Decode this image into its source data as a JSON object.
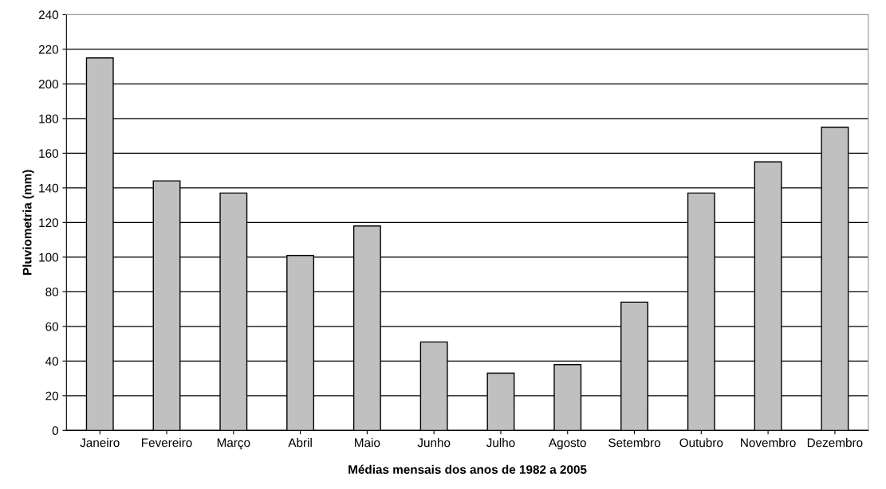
{
  "chart_data": {
    "type": "bar",
    "xlabel": "Médias mensais dos anos de 1982 a 2005",
    "ylabel": "Pluviometria (mm)",
    "categories": [
      "Janeiro",
      "Fevereiro",
      "Março",
      "Abril",
      "Maio",
      "Junho",
      "Julho",
      "Agosto",
      "Setembro",
      "Outubro",
      "Novembro",
      "Dezembro"
    ],
    "values": [
      215,
      144,
      137,
      101,
      118,
      51,
      33,
      38,
      74,
      137,
      155,
      175
    ],
    "color": "#c0c0c0",
    "ylim": [
      0,
      240
    ],
    "yticks": [
      0,
      20,
      40,
      60,
      80,
      100,
      120,
      140,
      160,
      180,
      200,
      220,
      240
    ],
    "grid": "y"
  }
}
